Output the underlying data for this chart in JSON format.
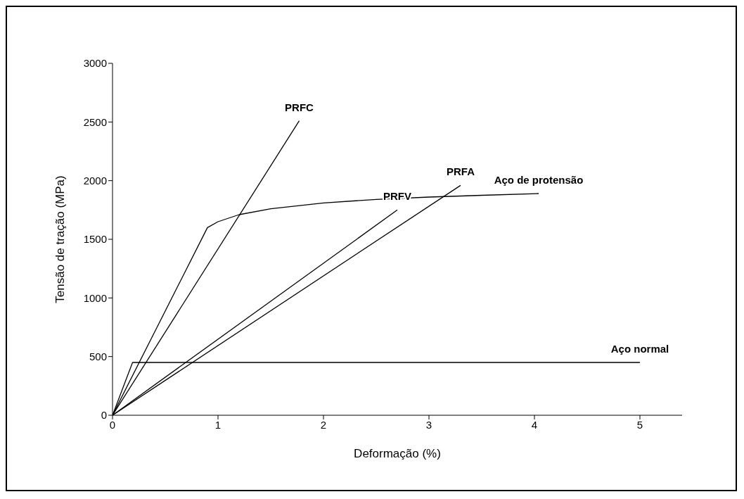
{
  "chart_data": {
    "type": "line",
    "xlabel": "Deformação (%)",
    "ylabel": "Tensão de tração (MPa)",
    "xlim": [
      0,
      5.4
    ],
    "xticks": [
      0,
      1,
      2,
      3,
      4,
      5
    ],
    "ylim": [
      0,
      3000
    ],
    "yticks": [
      0,
      500,
      1000,
      1500,
      2000,
      2500,
      3000
    ],
    "grid": false,
    "marker": "none",
    "line_style": "solid",
    "series": [
      {
        "name": "PRFC",
        "color": "#000000",
        "x": [
          0,
          1.77
        ],
        "values": [
          0,
          2510
        ]
      },
      {
        "name": "Aço de protensão",
        "color": "#000000",
        "x": [
          0,
          0.9,
          1.0,
          1.2,
          1.5,
          2,
          2.5,
          3,
          3.5,
          4.04
        ],
        "values": [
          0,
          1600,
          1650,
          1710,
          1760,
          1810,
          1840,
          1860,
          1875,
          1890
        ]
      },
      {
        "name": "PRFV",
        "color": "#000000",
        "x": [
          0,
          2.7
        ],
        "values": [
          0,
          1750
        ]
      },
      {
        "name": "PRFA",
        "color": "#000000",
        "x": [
          0,
          3.3
        ],
        "values": [
          0,
          1960
        ]
      },
      {
        "name": "Aço normal",
        "color": "#000000",
        "x": [
          0,
          0.19,
          5.0
        ],
        "values": [
          0,
          450,
          450
        ]
      }
    ]
  }
}
